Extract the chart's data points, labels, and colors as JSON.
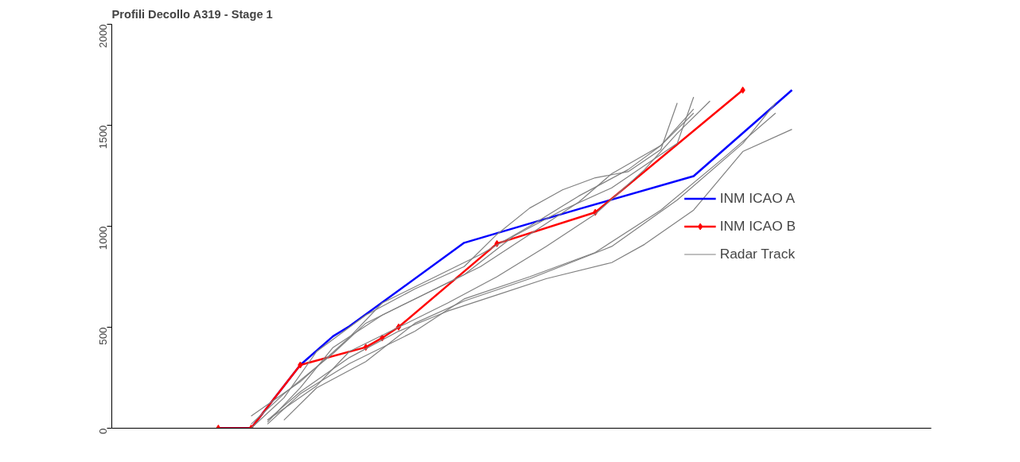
{
  "chart_data": {
    "type": "line",
    "title": "Profili Decollo A319 - Stage 1",
    "categories": [
      null,
      null,
      null,
      null,
      null,
      null,
      null,
      null,
      null,
      null,
      null,
      null,
      null,
      null,
      null,
      null,
      null,
      null,
      null,
      null,
      null,
      null,
      null,
      null,
      null,
      null,
      null,
      null,
      null,
      null,
      null,
      null,
      null,
      null,
      null,
      null,
      null,
      null,
      null,
      null,
      null,
      null,
      null,
      null,
      null,
      null,
      null,
      null,
      null,
      null
    ],
    "ylim": [
      0,
      2000
    ],
    "yticks": [
      0,
      500,
      1000,
      1500,
      2000
    ],
    "tick_labels": "y",
    "grid": false,
    "legend": "right",
    "series": [
      {
        "name": "INM ICAO A",
        "color": "#0000ff",
        "marker": "none",
        "values": [
          null,
          null,
          null,
          null,
          null,
          null,
          0,
          null,
          0,
          null,
          null,
          313,
          null,
          455,
          505,
          null,
          null,
          null,
          null,
          null,
          null,
          918,
          null,
          null,
          null,
          null,
          null,
          null,
          1085,
          null,
          null,
          null,
          null,
          null,
          null,
          1248,
          null,
          null,
          null,
          null,
          null,
          1674,
          null,
          null,
          null,
          null,
          null,
          null,
          null,
          null
        ]
      },
      {
        "name": "INM ICAO B",
        "color": "#ff0000",
        "marker": "diamond",
        "values": [
          null,
          null,
          null,
          null,
          null,
          null,
          0,
          null,
          0,
          null,
          null,
          313,
          null,
          null,
          null,
          401,
          447,
          501,
          null,
          null,
          null,
          null,
          null,
          914,
          null,
          null,
          null,
          null,
          null,
          1069,
          null,
          null,
          null,
          null,
          null,
          null,
          null,
          null,
          1674,
          null,
          null,
          null,
          null,
          null,
          null,
          null,
          null,
          null,
          null,
          null
        ]
      },
      {
        "name": "Radar Track",
        "color": "#808080",
        "marker": "none",
        "values": [
          null,
          null,
          null,
          null,
          null,
          null,
          null,
          null,
          0,
          null,
          150,
          null,
          380,
          null,
          null,
          560,
          null,
          null,
          690,
          null,
          null,
          800,
          null,
          960,
          null,
          1090,
          null,
          1180,
          null,
          1240,
          null,
          1270,
          null,
          1380,
          1610,
          null,
          null,
          null,
          null,
          null,
          null,
          null,
          null,
          null,
          null,
          null,
          null,
          null,
          null,
          null
        ]
      },
      {
        "color": "#808080",
        "marker": "none",
        "values": [
          null,
          null,
          null,
          null,
          null,
          null,
          null,
          null,
          20,
          null,
          170,
          null,
          null,
          370,
          null,
          520,
          null,
          null,
          640,
          null,
          null,
          760,
          null,
          null,
          950,
          null,
          null,
          1080,
          null,
          null,
          1190,
          null,
          1300,
          null,
          1410,
          1640,
          null,
          null,
          null,
          null,
          null,
          null,
          null,
          null,
          null,
          null,
          null,
          null,
          null,
          null
        ]
      },
      {
        "color": "#808080",
        "marker": "none",
        "values": [
          null,
          null,
          null,
          null,
          null,
          null,
          null,
          null,
          null,
          30,
          null,
          200,
          null,
          400,
          null,
          null,
          560,
          null,
          null,
          680,
          null,
          null,
          800,
          null,
          null,
          960,
          null,
          null,
          1120,
          null,
          1260,
          null,
          null,
          1400,
          null,
          1580,
          null,
          null,
          null,
          null,
          null,
          null,
          null,
          null,
          null,
          null,
          null,
          null,
          null,
          null
        ]
      },
      {
        "color": "#808080",
        "marker": "none",
        "values": [
          null,
          null,
          null,
          null,
          null,
          null,
          null,
          null,
          null,
          40,
          null,
          null,
          210,
          null,
          380,
          null,
          null,
          500,
          null,
          null,
          620,
          null,
          null,
          750,
          null,
          null,
          900,
          null,
          null,
          1060,
          null,
          null,
          1280,
          null,
          1460,
          null,
          1620,
          null,
          null,
          null,
          null,
          null,
          null,
          null,
          null,
          null,
          null,
          null,
          null,
          null
        ]
      },
      {
        "color": "#808080",
        "marker": "none",
        "values": [
          null,
          null,
          null,
          null,
          null,
          null,
          null,
          null,
          60,
          null,
          null,
          230,
          null,
          null,
          450,
          null,
          620,
          null,
          null,
          740,
          null,
          null,
          860,
          null,
          null,
          1000,
          null,
          null,
          1150,
          null,
          null,
          1280,
          null,
          1400,
          null,
          1560,
          null,
          null,
          null,
          null,
          null,
          null,
          null,
          null,
          null,
          null,
          null,
          null,
          null,
          null
        ]
      },
      {
        "color": "#808080",
        "marker": "none",
        "values": [
          null,
          null,
          null,
          null,
          null,
          null,
          null,
          null,
          null,
          20,
          null,
          170,
          null,
          null,
          320,
          null,
          null,
          null,
          480,
          null,
          null,
          640,
          null,
          null,
          null,
          750,
          null,
          null,
          null,
          870,
          null,
          null,
          null,
          1080,
          null,
          null,
          null,
          1350,
          null,
          null,
          1560,
          null,
          null,
          null,
          null,
          null,
          null,
          null,
          null,
          null
        ]
      },
      {
        "color": "#808080",
        "marker": "none",
        "values": [
          null,
          null,
          null,
          null,
          null,
          null,
          null,
          null,
          null,
          null,
          40,
          null,
          200,
          null,
          null,
          330,
          null,
          null,
          520,
          null,
          null,
          630,
          null,
          null,
          null,
          740,
          null,
          null,
          null,
          null,
          900,
          null,
          null,
          null,
          1130,
          null,
          null,
          null,
          1410,
          null,
          1610,
          null,
          null,
          null,
          null,
          null,
          null,
          null,
          null,
          null
        ]
      },
      {
        "color": "#808080",
        "marker": "none",
        "values": [
          null,
          null,
          null,
          null,
          null,
          null,
          null,
          null,
          null,
          40,
          null,
          180,
          null,
          null,
          350,
          null,
          null,
          480,
          null,
          null,
          580,
          null,
          null,
          660,
          null,
          null,
          740,
          null,
          null,
          null,
          820,
          null,
          910,
          null,
          null,
          1080,
          null,
          null,
          1370,
          null,
          null,
          1480,
          null,
          null,
          null,
          null,
          null,
          null,
          null,
          null
        ]
      }
    ]
  }
}
